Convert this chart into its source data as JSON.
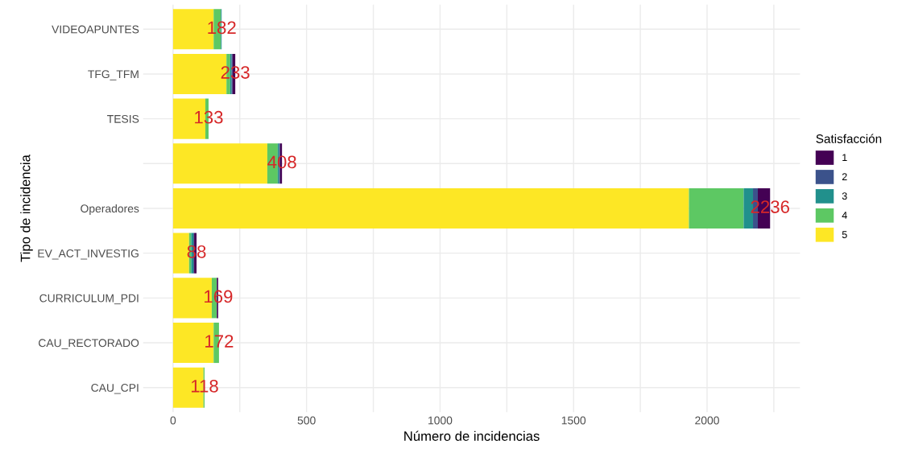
{
  "chart_data": {
    "type": "bar",
    "orientation": "horizontal",
    "stacked": true,
    "xlabel": "Número de incidencias",
    "ylabel": "Tipo de incidencia",
    "legend_title": "Satisfacción",
    "categories": [
      "VIDEOAPUNTES",
      "TFG_TFM",
      "TESIS",
      null,
      "Operadores",
      "EV_ACT_INVESTIG",
      "CURRICULUM_PDI",
      "CAU_RECTORADO",
      "CAU_CPI"
    ],
    "series": [
      {
        "name": "5",
        "color": "#fde725",
        "values": [
          152,
          200,
          121,
          353,
          1932,
          60,
          145,
          152,
          114
        ]
      },
      {
        "name": "4",
        "color": "#5dc863",
        "values": [
          27,
          14,
          12,
          39,
          205,
          8,
          19,
          20,
          4
        ]
      },
      {
        "name": "3",
        "color": "#21908c",
        "values": [
          3,
          5,
          0,
          5,
          35,
          8,
          null,
          0,
          0
        ]
      },
      {
        "name": "2",
        "color": "#3b528b",
        "values": [
          0,
          4,
          0,
          4,
          18,
          3,
          0,
          0,
          0
        ]
      },
      {
        "name": "1",
        "color": "#440154",
        "values": [
          0,
          10,
          0,
          7,
          46,
          9,
          5,
          0,
          0
        ]
      }
    ],
    "totals": [
      "182",
      "233",
      "133",
      "408",
      "2236",
      "88",
      "169",
      "172",
      "118"
    ],
    "xlim": [
      -112,
      2348
    ],
    "xticks": [
      0,
      {
        "value": 250,
        "label": null
      },
      500,
      {
        "value": 750,
        "label": null
      },
      1000,
      {
        "value": 1250,
        "label": null
      },
      1500,
      {
        "value": 1750,
        "label": null
      },
      2000,
      {
        "value": 2250,
        "label": null
      }
    ],
    "grid": true,
    "legend": "right"
  }
}
